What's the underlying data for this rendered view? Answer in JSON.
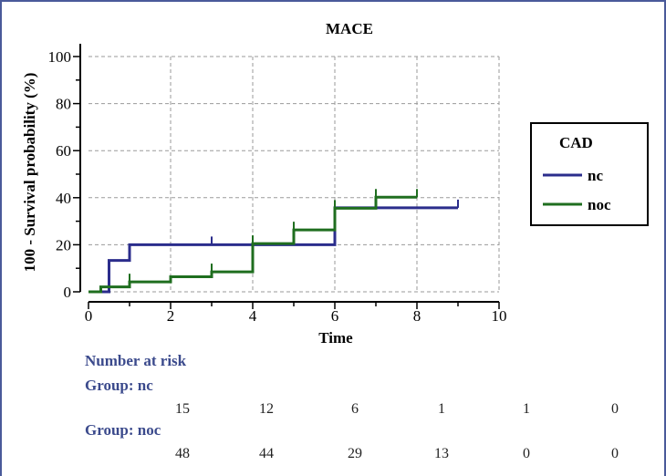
{
  "chart_data": {
    "type": "line",
    "subtype": "kaplan-meier-step",
    "title": "MACE",
    "xlabel": "Time",
    "ylabel": "100 - Survival probability (%)",
    "xlim": [
      0,
      10
    ],
    "ylim": [
      0,
      100
    ],
    "x_ticks": [
      0,
      2,
      4,
      6,
      8,
      10
    ],
    "y_ticks": [
      0,
      20,
      40,
      60,
      80,
      100
    ],
    "grid": true,
    "legend": {
      "title": "CAD",
      "placement": "right"
    },
    "series": [
      {
        "name": "nc",
        "color": "#2b2d8c",
        "steps": [
          [
            0,
            0
          ],
          [
            0.5,
            13.3
          ],
          [
            1,
            20
          ],
          [
            6,
            20
          ],
          [
            6,
            35.7
          ],
          [
            9,
            35.7
          ]
        ],
        "censor_times": [
          3,
          9
        ]
      },
      {
        "name": "noc",
        "color": "#1f6e1f",
        "steps": [
          [
            0,
            0
          ],
          [
            0.3,
            2.1
          ],
          [
            1,
            4.2
          ],
          [
            2,
            6.4
          ],
          [
            3,
            8.5
          ],
          [
            4,
            8.5
          ],
          [
            4,
            20.5
          ],
          [
            5,
            20.5
          ],
          [
            5,
            26.3
          ],
          [
            6,
            26.3
          ],
          [
            6,
            35.5
          ],
          [
            7,
            35.5
          ],
          [
            7,
            40.2
          ],
          [
            8,
            40.2
          ]
        ],
        "censor_times": [
          1,
          3,
          4,
          5,
          6,
          7,
          8
        ]
      }
    ]
  },
  "risk_table": {
    "title": "Number at risk",
    "groups": [
      {
        "label": "Group: nc",
        "counts": [
          "15",
          "12",
          "6",
          "1",
          "1",
          "0"
        ]
      },
      {
        "label": "Group: noc",
        "counts": [
          "48",
          "44",
          "29",
          "13",
          "0",
          "0"
        ]
      }
    ]
  }
}
